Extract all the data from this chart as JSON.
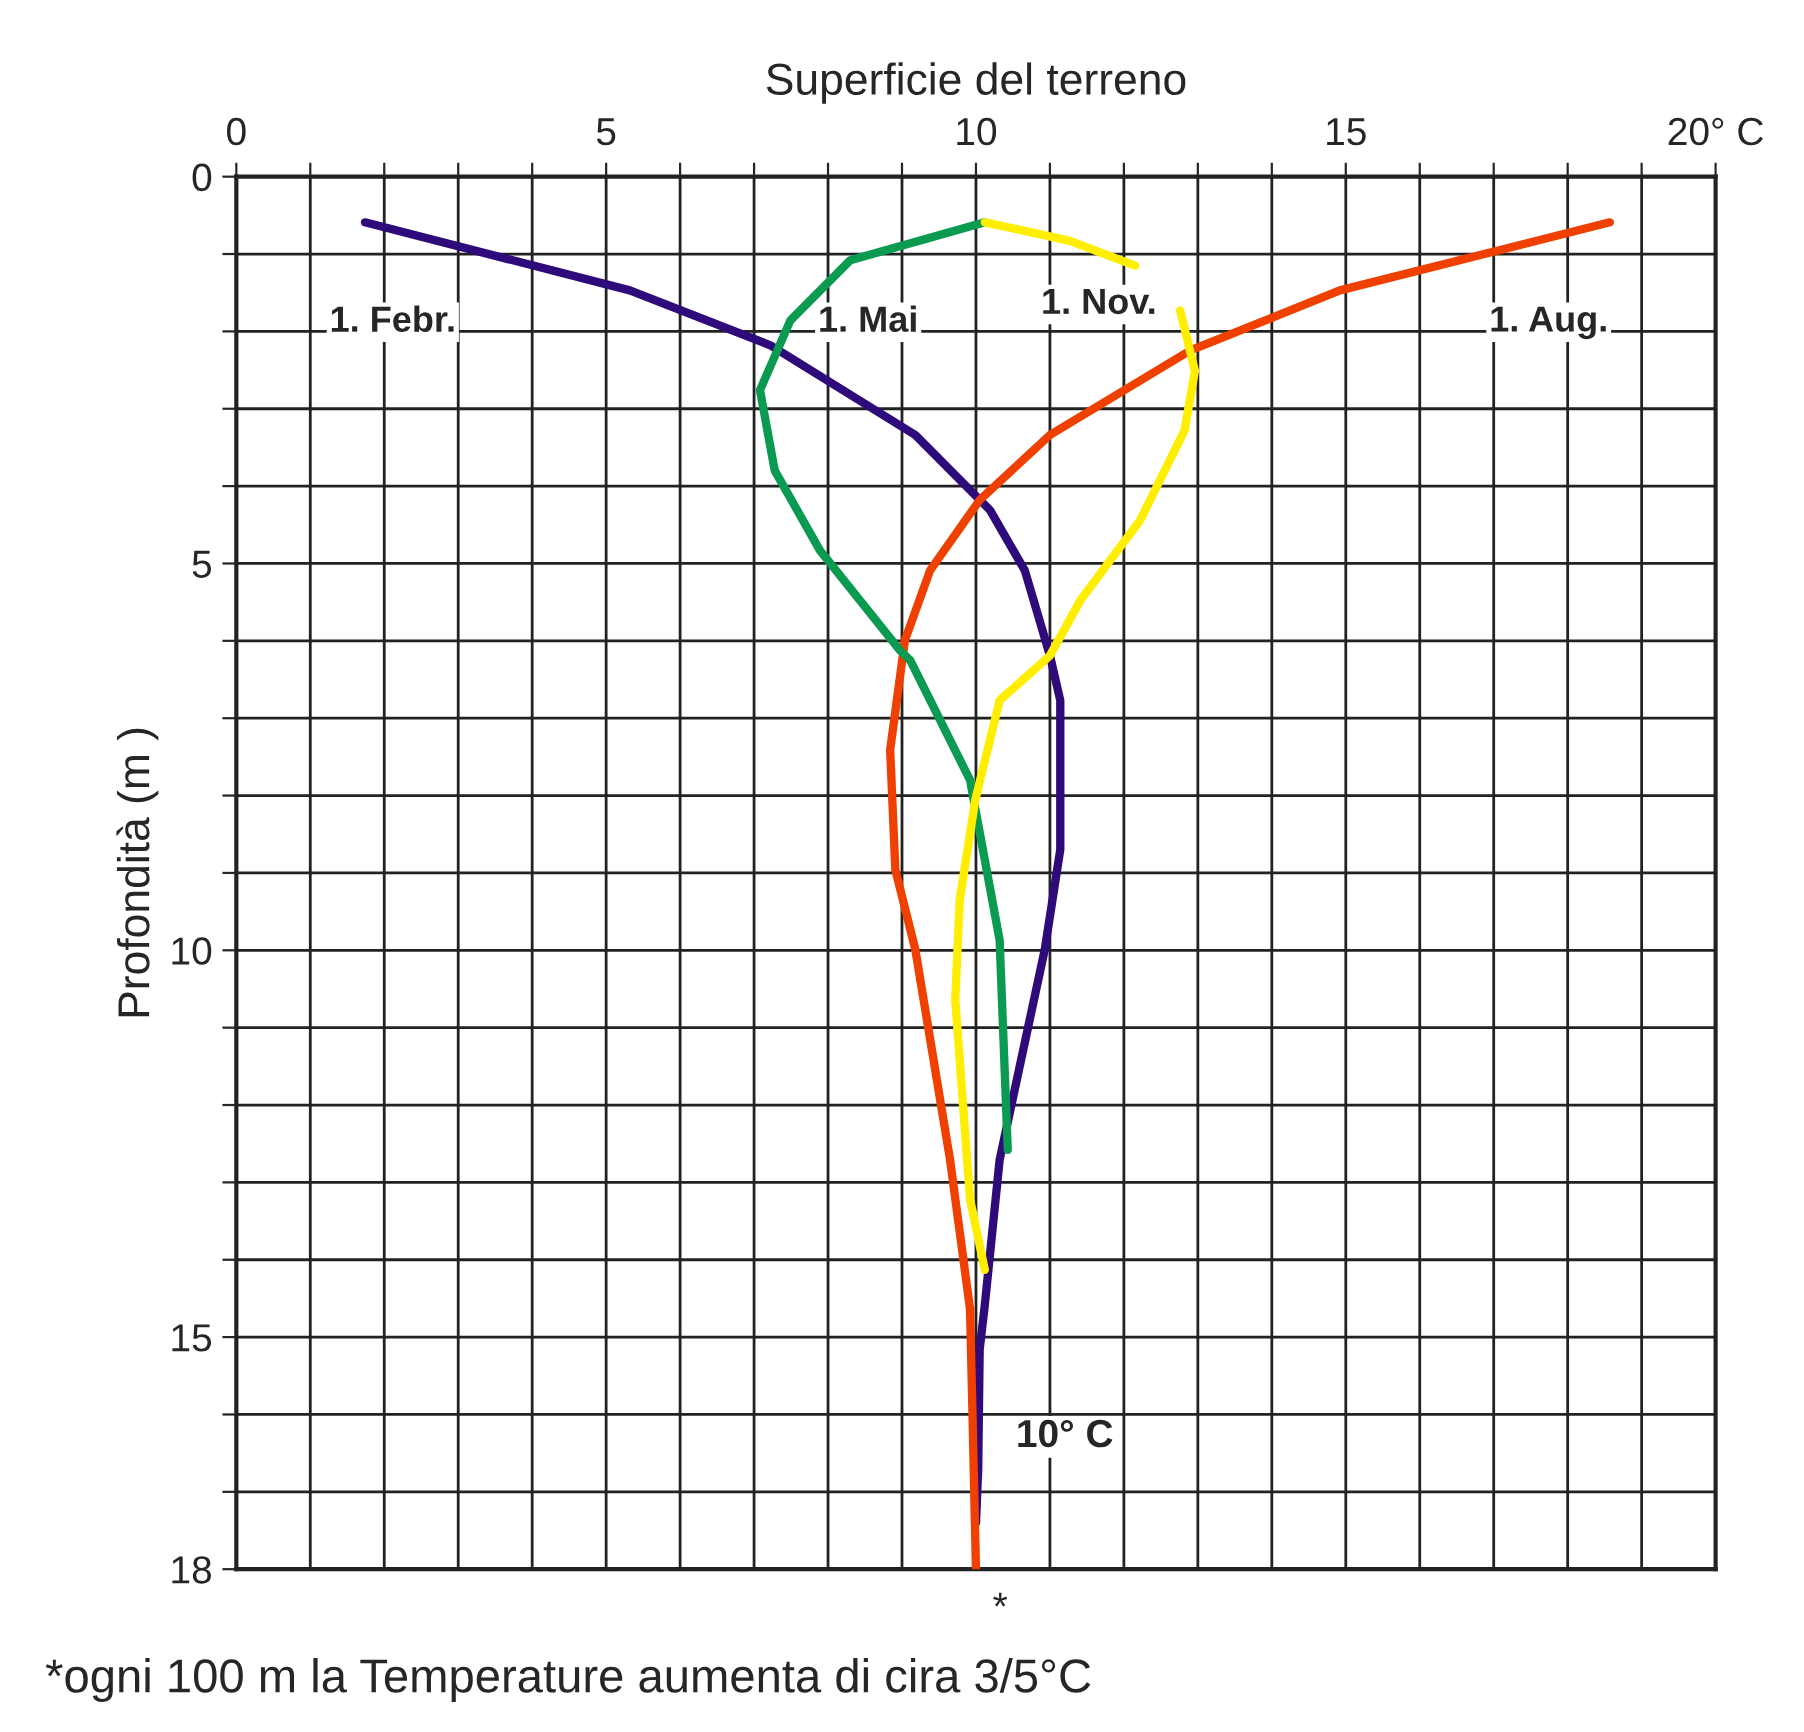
{
  "chart_data": {
    "type": "line",
    "xlabel": "Superficie del terreno",
    "ylabel": "Profondità (m )",
    "xlim": [
      0,
      20
    ],
    "ylim": [
      18,
      0
    ],
    "xticks": [
      0,
      {
        "value": 1,
        "label": null
      },
      {
        "value": 2,
        "label": null
      },
      {
        "value": 3,
        "label": null
      },
      {
        "value": 4,
        "label": null
      },
      5,
      {
        "value": 6,
        "label": null
      },
      {
        "value": 7,
        "label": null
      },
      {
        "value": 8,
        "label": null
      },
      {
        "value": 9,
        "label": null
      },
      10,
      {
        "value": 11,
        "label": null
      },
      {
        "value": 12,
        "label": null
      },
      {
        "value": 13,
        "label": null
      },
      {
        "value": 14,
        "label": null
      },
      15,
      {
        "value": 16,
        "label": null
      },
      {
        "value": 17,
        "label": null
      },
      {
        "value": 18,
        "label": null
      },
      {
        "value": 19,
        "label": null
      },
      {
        "value": 20,
        "label": "20° C"
      }
    ],
    "yticks": [
      0,
      {
        "value": 1,
        "label": null
      },
      {
        "value": 2,
        "label": null
      },
      {
        "value": 3,
        "label": null
      },
      {
        "value": 4,
        "label": null
      },
      5,
      {
        "value": 6,
        "label": null
      },
      {
        "value": 7,
        "label": null
      },
      {
        "value": 8,
        "label": null
      },
      {
        "value": 9,
        "label": null
      },
      10,
      {
        "value": 11,
        "label": null
      },
      {
        "value": 12,
        "label": null
      },
      {
        "value": 13,
        "label": null
      },
      {
        "value": 14,
        "label": null
      },
      15,
      {
        "value": 16,
        "label": null
      },
      {
        "value": 17,
        "label": null
      },
      18
    ],
    "grid": true,
    "legend": false,
    "marker": "none",
    "line_style": "solid",
    "series": [
      {
        "name": "1. Febr.",
        "color": "#2e0a7a",
        "x": [
          1.74,
          5.32,
          7.22,
          9.18,
          10.19,
          10.66,
          11.0,
          11.14,
          11.14,
          10.93,
          10.32,
          10.12,
          10.05,
          10.03,
          10.0
        ],
        "values": [
          0.59,
          1.47,
          2.18,
          3.34,
          4.31,
          5.09,
          6.19,
          6.77,
          8.7,
          9.99,
          12.71,
          14.58,
          15.16,
          16.71,
          17.4
        ]
      },
      {
        "name": "1. Aug.",
        "color": "#f04000",
        "x": [
          18.57,
          14.92,
          12.89,
          11.0,
          10.05,
          9.38,
          9.04,
          8.84,
          8.91,
          9.18,
          9.65,
          9.92,
          9.95,
          10.0
        ],
        "values": [
          0.59,
          1.47,
          2.25,
          3.34,
          4.18,
          5.09,
          5.99,
          7.41,
          8.96,
          9.99,
          12.71,
          14.64,
          15.87,
          18.0
        ]
      },
      {
        "name": "1. Mai",
        "color": "#0a9a50",
        "x": [
          10.12,
          8.3,
          7.49,
          7.08,
          7.28,
          7.89,
          8.97,
          9.11,
          9.92,
          10.32,
          10.43
        ],
        "values": [
          0.59,
          1.08,
          1.86,
          2.76,
          3.8,
          4.83,
          6.12,
          6.25,
          7.8,
          9.87,
          12.58
        ]
      },
      {
        "name": "1. Nov.",
        "color": "#ffee00",
        "x": [
          12.15,
          11.27,
          10.12,
          null,
          12.76,
          12.96,
          12.82,
          12.22,
          11.41,
          11.0,
          10.32,
          9.99,
          9.78,
          9.72,
          9.92,
          10.12
        ],
        "values": [
          1.15,
          0.83,
          0.59,
          null,
          1.73,
          2.51,
          3.28,
          4.44,
          5.48,
          6.19,
          6.77,
          8.06,
          9.35,
          10.64,
          13.22,
          14.13
        ]
      }
    ],
    "annotations": [
      "10° C",
      "*",
      "*ogni 100 m la Temperature aumenta di cira 3/5°C"
    ]
  }
}
